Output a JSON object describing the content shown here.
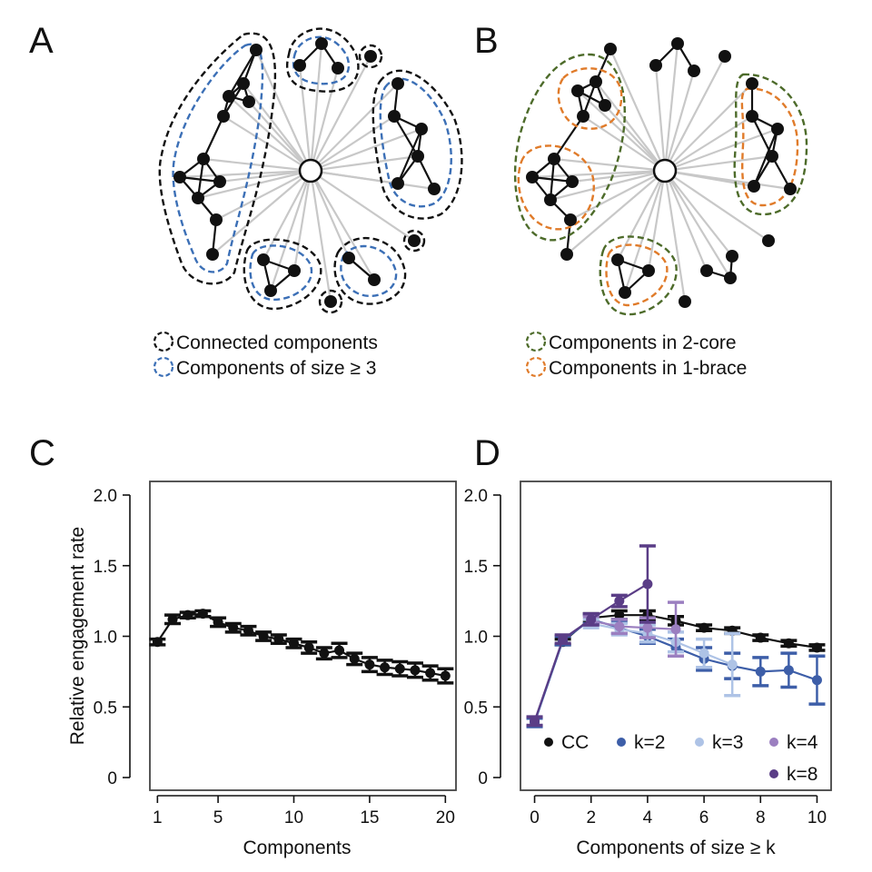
{
  "panels": {
    "A": {
      "letter": "A",
      "legend": [
        {
          "label": "Connected components",
          "color": "#111111"
        },
        {
          "label": "Components of size ≥ 3",
          "color": "#3b6fb6"
        }
      ]
    },
    "B": {
      "letter": "B",
      "legend": [
        {
          "label": "Components in 2-core",
          "color": "#4d6b2a"
        },
        {
          "label": "Components in 1-brace",
          "color": "#e07b2a"
        }
      ]
    },
    "C": {
      "letter": "C"
    },
    "D": {
      "letter": "D"
    }
  },
  "chart_data": [
    {
      "panel": "C",
      "type": "line",
      "xlabel": "Components",
      "ylabel": "Relative engagement rate",
      "xlim": [
        0.5,
        20.7
      ],
      "ylim": [
        0,
        2.0
      ],
      "xticks": [
        1,
        5,
        10,
        15,
        20
      ],
      "yticks": [
        0,
        0.5,
        1.0,
        1.5,
        2.0
      ],
      "ytick_labels": [
        "0",
        "0.5",
        "1.0",
        "1.5",
        "2.0"
      ],
      "grid": false,
      "series": [
        {
          "color": "#111111",
          "x": [
            1,
            2,
            3,
            4,
            5,
            6,
            7,
            8,
            9,
            10,
            11,
            12,
            13,
            14,
            15,
            16,
            17,
            18,
            19,
            20
          ],
          "y": [
            0.96,
            1.12,
            1.15,
            1.16,
            1.1,
            1.06,
            1.04,
            1.0,
            0.98,
            0.95,
            0.92,
            0.88,
            0.9,
            0.84,
            0.8,
            0.78,
            0.77,
            0.76,
            0.74,
            0.72
          ],
          "err": [
            0.02,
            0.03,
            0.02,
            0.02,
            0.03,
            0.03,
            0.03,
            0.03,
            0.03,
            0.03,
            0.04,
            0.04,
            0.05,
            0.04,
            0.05,
            0.05,
            0.05,
            0.05,
            0.05,
            0.05
          ]
        }
      ]
    },
    {
      "panel": "D",
      "type": "line",
      "xlabel": "Components of size ≥ k",
      "ylabel": "",
      "xlim": [
        -0.5,
        10.5
      ],
      "ylim": [
        0,
        2.0
      ],
      "xticks": [
        0,
        2,
        4,
        6,
        8,
        10
      ],
      "yticks": [
        0,
        0.5,
        1.0,
        1.5,
        2.0
      ],
      "ytick_labels": [
        "0",
        "0.5",
        "1.0",
        "1.5",
        "2.0"
      ],
      "grid": false,
      "legend_position": "bottom-right",
      "series": [
        {
          "name": "CC",
          "color": "#111111",
          "x": [
            1,
            2,
            3,
            4,
            5,
            6,
            7,
            8,
            9,
            10
          ],
          "y": [
            0.96,
            1.13,
            1.15,
            1.15,
            1.11,
            1.06,
            1.04,
            0.99,
            0.95,
            0.92
          ],
          "err": [
            0.02,
            0.03,
            0.03,
            0.03,
            0.03,
            0.02,
            0.02,
            0.02,
            0.02,
            0.02
          ]
        },
        {
          "name": "k=2",
          "color": "#3d5ea8",
          "x": [
            0,
            1,
            2,
            3,
            4,
            5,
            6,
            7,
            8,
            9,
            10
          ],
          "y": [
            0.39,
            0.97,
            1.12,
            1.06,
            1.0,
            0.92,
            0.84,
            0.79,
            0.75,
            0.76,
            0.69
          ],
          "err": [
            0.03,
            0.03,
            0.03,
            0.04,
            0.05,
            0.06,
            0.08,
            0.09,
            0.1,
            0.12,
            0.17
          ]
        },
        {
          "name": "k=3",
          "color": "#aec3e6",
          "x": [
            2,
            3,
            4,
            5,
            6,
            7
          ],
          "y": [
            1.09,
            1.05,
            1.02,
            0.96,
            0.88,
            0.8
          ],
          "err": [
            0.03,
            0.04,
            0.06,
            0.07,
            0.1,
            0.22
          ]
        },
        {
          "name": "k=4",
          "color": "#9b7fc0",
          "x": [
            2,
            3,
            4,
            5
          ],
          "y": [
            1.11,
            1.07,
            1.06,
            1.05
          ],
          "err": [
            0.03,
            0.05,
            0.07,
            0.19
          ]
        },
        {
          "name": "k=8",
          "color": "#5a3d86",
          "x": [
            0,
            1,
            2,
            3,
            4
          ],
          "y": [
            0.4,
            0.98,
            1.12,
            1.25,
            1.37
          ],
          "err": [
            0.03,
            0.03,
            0.04,
            0.04,
            0.27
          ]
        }
      ]
    }
  ]
}
